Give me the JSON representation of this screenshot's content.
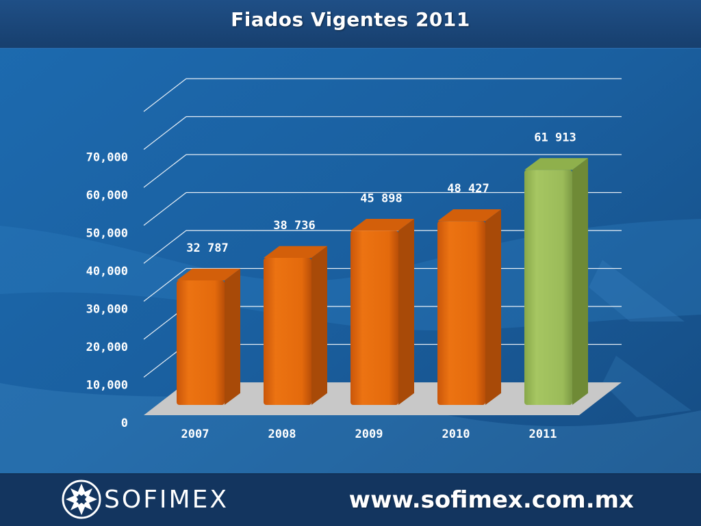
{
  "header": {
    "title": "Fiados Vigentes 2011"
  },
  "footer": {
    "brand": "SOFIMEX",
    "url": "www.sofimex.com.mx"
  },
  "colors": {
    "bar_default": "#e46a0c",
    "bar_highlight": "#9bbb59",
    "background": "#1b5c9a",
    "floor": "#c8c8c8"
  },
  "icons": {
    "logo": "sofimex-logo-icon"
  },
  "chart_data": {
    "type": "bar",
    "title": "Fiados Vigentes 2011",
    "xlabel": "",
    "ylabel": "",
    "categories": [
      "2007",
      "2008",
      "2009",
      "2010",
      "2011"
    ],
    "values": [
      32787,
      38736,
      45898,
      48427,
      61913
    ],
    "value_labels": [
      "32 787",
      "38 736",
      "45 898",
      "48 427",
      "61 913"
    ],
    "highlight_index": 4,
    "ylim": [
      0,
      70000
    ],
    "yticks": [
      0,
      10000,
      20000,
      30000,
      40000,
      50000,
      60000,
      70000
    ],
    "ytick_labels": [
      "0",
      "10,000",
      "20,000",
      "30,000",
      "40,000",
      "50,000",
      "60,000",
      "70,000"
    ],
    "grid": true,
    "style": "3d-column"
  }
}
